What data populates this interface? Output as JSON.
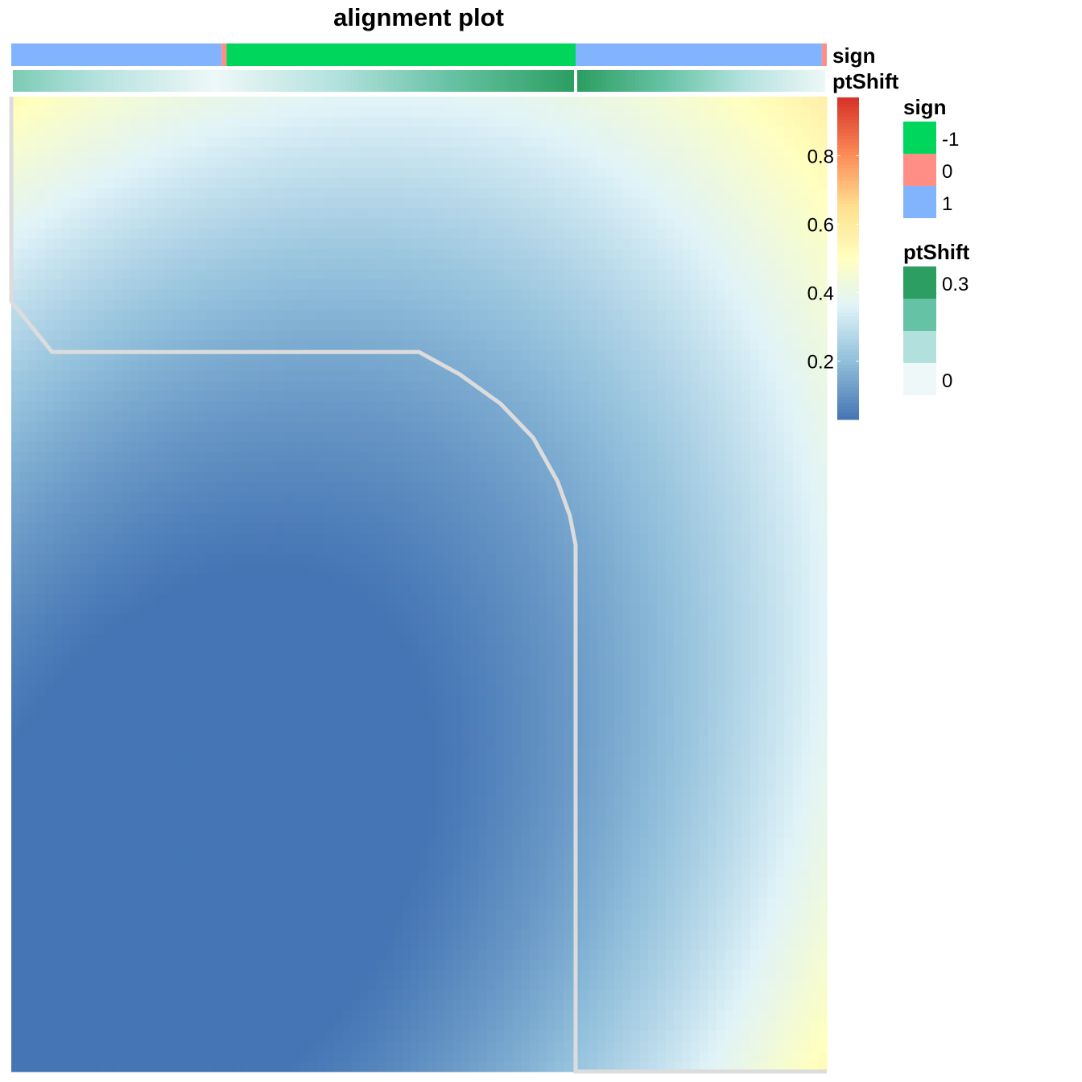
{
  "chart_data": {
    "type": "heatmap",
    "title": "alignment plot",
    "annotations": {
      "sign": {
        "label": "sign",
        "segments": [
          {
            "value": "1",
            "from": 0.0,
            "to": 0.258
          },
          {
            "value": "0",
            "from": 0.258,
            "to": 0.264
          },
          {
            "value": "-1",
            "from": 0.264,
            "to": 0.692
          },
          {
            "value": "1",
            "from": 0.692,
            "to": 0.994
          },
          {
            "value": "0",
            "from": 0.994,
            "to": 1.0
          }
        ]
      },
      "ptShift": {
        "label": "ptShift",
        "profile": [
          {
            "pos": 0.0,
            "value": 0.2
          },
          {
            "pos": 0.25,
            "value": 0.0
          },
          {
            "pos": 0.69,
            "value": 0.35
          },
          {
            "pos": 0.695,
            "value": 0.35
          },
          {
            "pos": 1.0,
            "value": 0.0
          }
        ]
      }
    },
    "color_scale": {
      "min": 0.03,
      "max": 0.97,
      "stops": [
        {
          "value": 0.03,
          "color": "#4575b4"
        },
        {
          "value": 0.2,
          "color": "#91bfdb"
        },
        {
          "value": 0.36,
          "color": "#e0f3f8"
        },
        {
          "value": 0.5,
          "color": "#ffffbf"
        },
        {
          "value": 0.65,
          "color": "#fee090"
        },
        {
          "value": 0.8,
          "color": "#fc8d59"
        },
        {
          "value": 0.97,
          "color": "#d73027"
        }
      ],
      "ticks": [
        "0.8",
        "0.6",
        "0.4",
        "0.2"
      ],
      "tick_values": [
        0.8,
        0.6,
        0.4,
        0.2
      ]
    },
    "alignment_path": [
      [
        0.0,
        0.0
      ],
      [
        0.0,
        0.21
      ],
      [
        0.05,
        0.262
      ],
      [
        0.5,
        0.262
      ],
      [
        0.55,
        0.285
      ],
      [
        0.6,
        0.315
      ],
      [
        0.64,
        0.35
      ],
      [
        0.67,
        0.395
      ],
      [
        0.685,
        0.43
      ],
      [
        0.692,
        0.46
      ],
      [
        0.692,
        1.0
      ],
      [
        1.0,
        1.0
      ]
    ],
    "legends": {
      "sign": {
        "title": "sign",
        "items": [
          {
            "label": "-1",
            "color": "#00d65c"
          },
          {
            "label": "0",
            "color": "#ff8f86"
          },
          {
            "label": "1",
            "color": "#82b4fd"
          }
        ]
      },
      "ptShift": {
        "title": "ptShift",
        "items": [
          {
            "label": "0.3",
            "color": "#2c9e61"
          },
          {
            "label": "",
            "color": "#66c2a4"
          },
          {
            "label": "",
            "color": "#b2e1dd"
          },
          {
            "label": "0",
            "color": "#eef8f8"
          }
        ]
      }
    }
  },
  "colors": {
    "path": "#dcdcdc"
  }
}
